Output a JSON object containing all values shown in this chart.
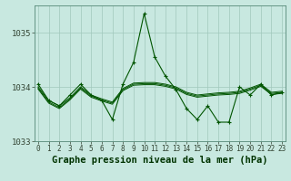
{
  "title": "Graphe pression niveau de la mer (hPa)",
  "background_color": "#c8e8e0",
  "grid_color": "#a0c8bc",
  "line_color": "#005500",
  "x_values": [
    0,
    1,
    2,
    3,
    4,
    5,
    6,
    7,
    8,
    9,
    10,
    11,
    12,
    13,
    14,
    15,
    16,
    17,
    18,
    19,
    20,
    21,
    22,
    23
  ],
  "line_main": [
    1034.05,
    1033.75,
    1033.65,
    1033.85,
    1034.05,
    1033.85,
    1033.75,
    1033.4,
    1034.05,
    1034.45,
    1035.35,
    1034.55,
    1034.2,
    1033.95,
    1033.6,
    1033.4,
    1033.65,
    1033.35,
    1033.35,
    1034.0,
    1033.85,
    1034.05,
    1033.85,
    1033.9
  ],
  "line_avg1": [
    1034.0,
    1033.75,
    1033.65,
    1033.8,
    1034.0,
    1033.85,
    1033.78,
    1033.72,
    1033.97,
    1034.07,
    1034.08,
    1034.08,
    1034.05,
    1034.0,
    1033.9,
    1033.85,
    1033.87,
    1033.89,
    1033.9,
    1033.92,
    1033.98,
    1034.05,
    1033.9,
    1033.92
  ],
  "line_avg2": [
    1033.98,
    1033.72,
    1033.62,
    1033.78,
    1033.98,
    1033.83,
    1033.76,
    1033.7,
    1033.95,
    1034.05,
    1034.06,
    1034.06,
    1034.03,
    1033.98,
    1033.88,
    1033.83,
    1033.85,
    1033.87,
    1033.88,
    1033.9,
    1033.96,
    1034.03,
    1033.88,
    1033.9
  ],
  "line_avg3": [
    1033.96,
    1033.7,
    1033.6,
    1033.76,
    1033.96,
    1033.81,
    1033.74,
    1033.68,
    1033.93,
    1034.03,
    1034.04,
    1034.04,
    1034.01,
    1033.96,
    1033.86,
    1033.81,
    1033.83,
    1033.85,
    1033.86,
    1033.88,
    1033.94,
    1034.01,
    1033.86,
    1033.88
  ],
  "ylim": [
    1033.0,
    1035.5
  ],
  "yticks": [
    1033,
    1034,
    1035
  ],
  "title_fontsize": 7.5,
  "tick_fontsize": 5.5
}
